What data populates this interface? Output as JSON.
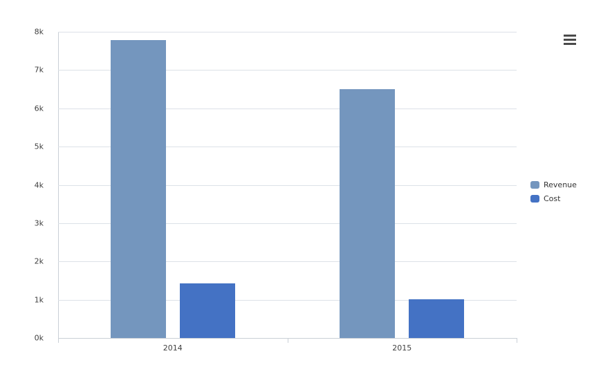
{
  "chart_data": {
    "type": "bar",
    "title": "",
    "xlabel": "",
    "ylabel": "",
    "categories": [
      "2014",
      "2015"
    ],
    "series": [
      {
        "name": "Revenue",
        "color": "#7496be",
        "values": [
          7780,
          6500
        ]
      },
      {
        "name": "Cost",
        "color": "#4472c4",
        "values": [
          1420,
          1010
        ]
      }
    ],
    "ylim": [
      0,
      8000
    ],
    "ytick_step": 1000,
    "ytick_labels": [
      "0k",
      "1k",
      "2k",
      "3k",
      "4k",
      "5k",
      "6k",
      "7k",
      "8k"
    ],
    "grid": "horizontal",
    "legend_position": "right-center"
  },
  "menu": {
    "icon": "hamburger-menu-icon"
  }
}
